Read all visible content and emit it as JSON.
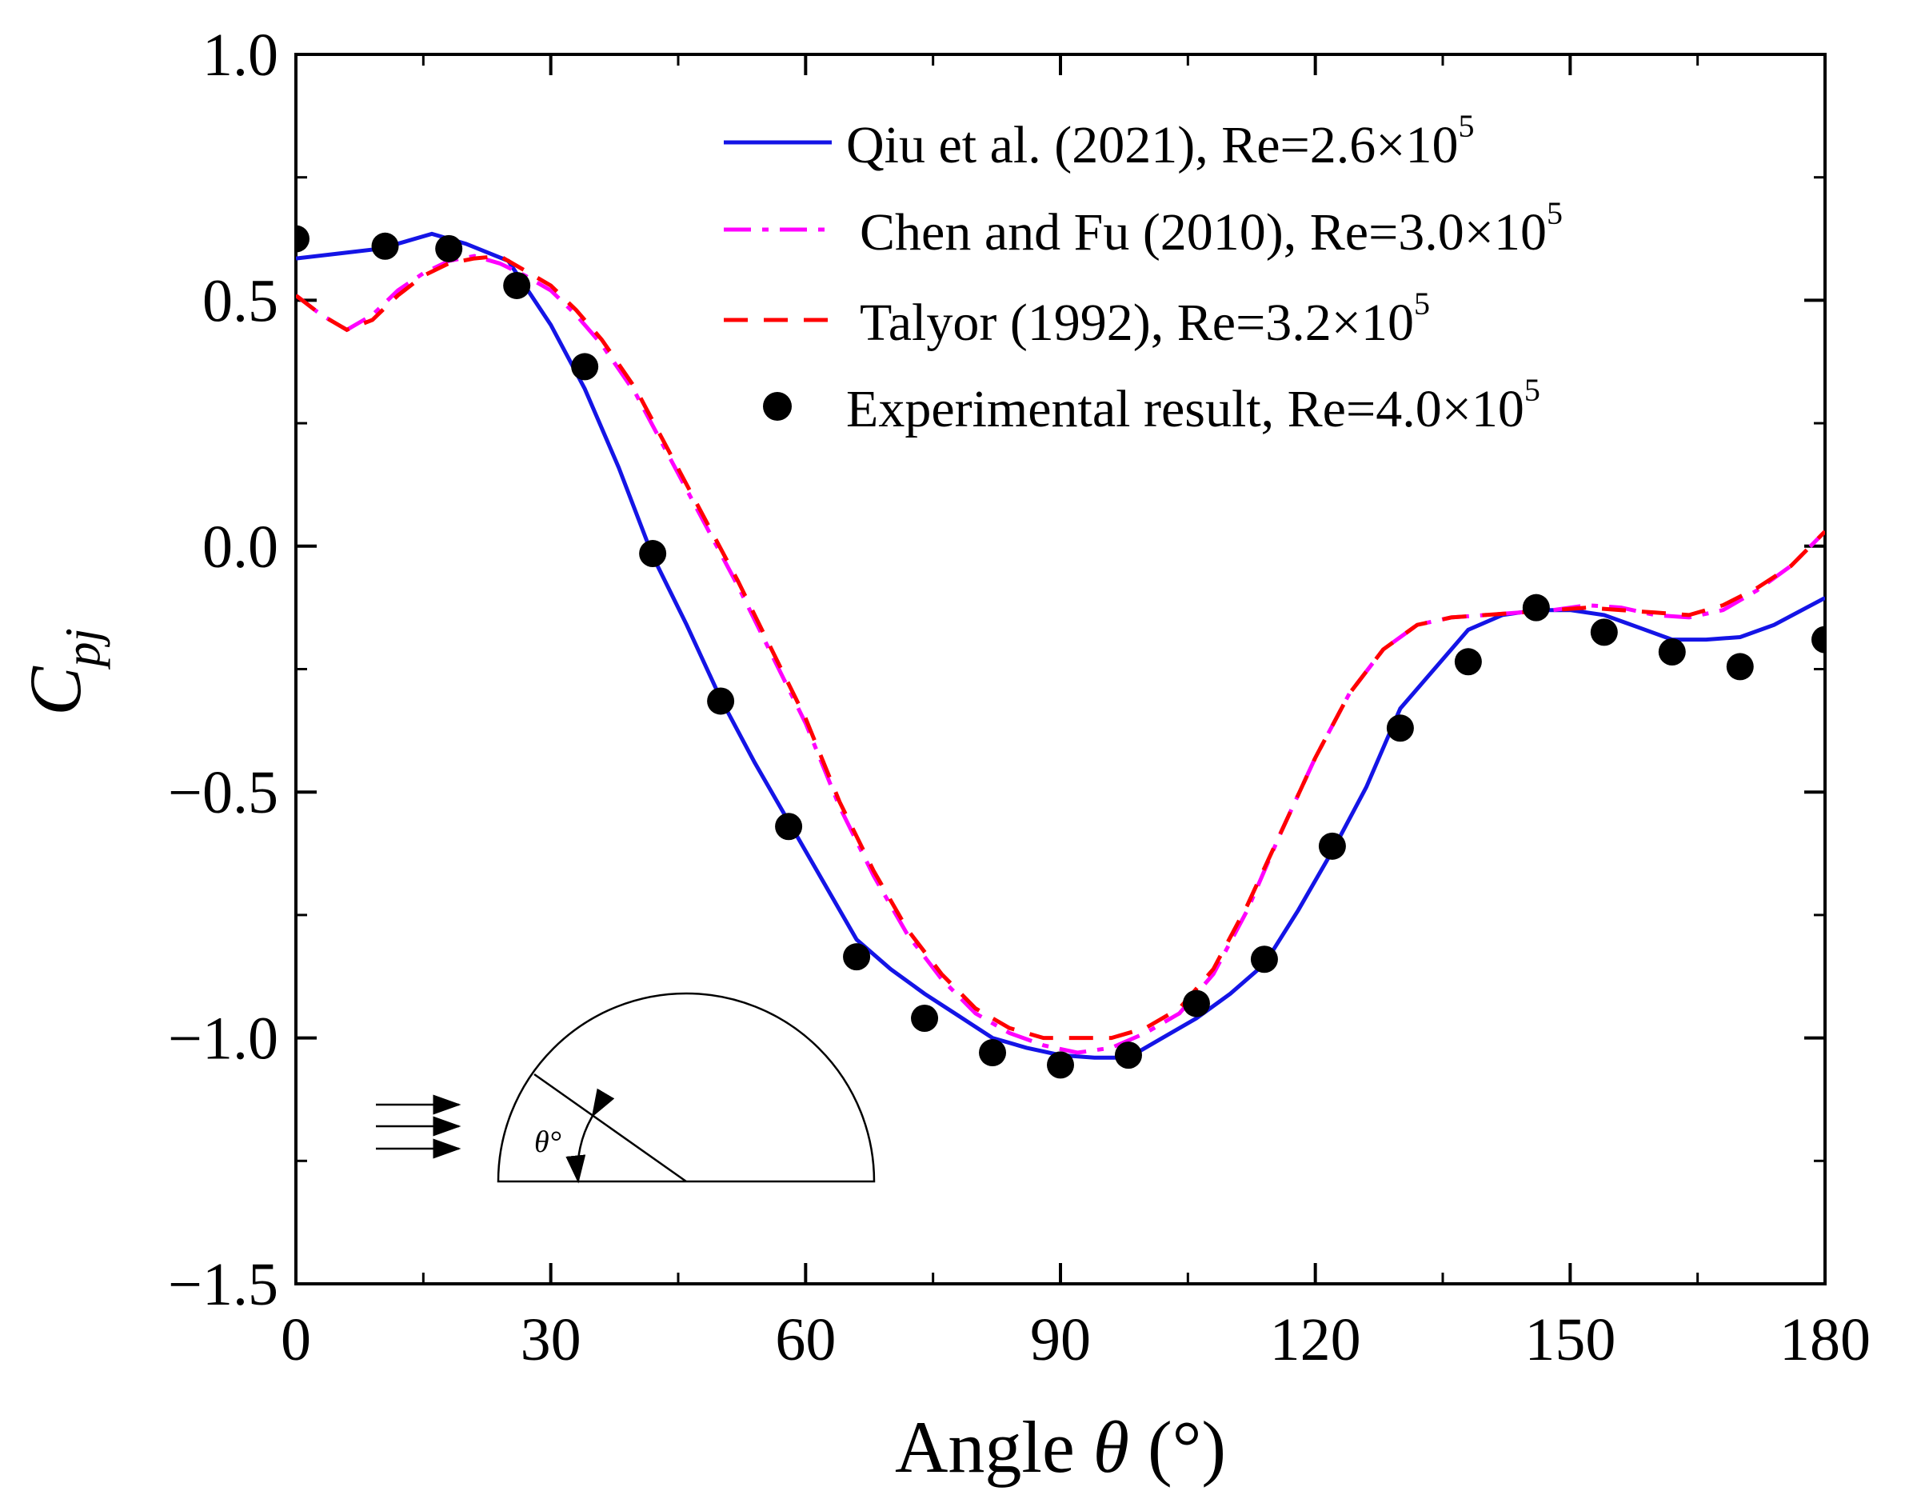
{
  "chart_data": {
    "type": "line",
    "xlabel": "Angle θ (°)",
    "xlabel_parts": {
      "prefix": "Angle ",
      "symbol": "θ",
      "suffix": " (°)"
    },
    "ylabel": "C_pj",
    "ylabel_parts": {
      "main": "C",
      "sub": "pj"
    },
    "xlim": [
      0,
      180
    ],
    "ylim": [
      -1.5,
      1.0
    ],
    "xticks": [
      0,
      30,
      60,
      90,
      120,
      150,
      180
    ],
    "xtick_labels": [
      "0",
      "30",
      "60",
      "90",
      "120",
      "150",
      "180"
    ],
    "yticks": [
      -1.5,
      -1.0,
      -0.5,
      0.0,
      0.5,
      1.0
    ],
    "ytick_labels": [
      "−1.5",
      "−1.0",
      "−0.5",
      "0.0",
      "0.5",
      "1.0"
    ],
    "grid": false,
    "legend_position": "top-right",
    "series": [
      {
        "name": "Qiu et al. (2021), Re=2.6×10^5",
        "label_main": "Qiu et al. (2021), Re=2.6×10",
        "label_exp": "5",
        "style": "solid",
        "color": "#1414e6",
        "x": [
          0,
          5,
          10,
          16,
          20,
          25,
          30,
          34,
          38,
          42,
          46,
          50,
          54,
          58,
          62,
          66,
          70,
          74,
          78,
          82,
          86,
          90,
          94,
          98,
          102,
          106,
          110,
          114,
          118,
          122,
          126,
          130,
          134,
          138,
          142,
          146,
          150,
          154,
          158,
          162,
          166,
          170,
          174,
          180
        ],
        "y": [
          0.585,
          0.595,
          0.605,
          0.635,
          0.615,
          0.58,
          0.45,
          0.32,
          0.16,
          -0.02,
          -0.16,
          -0.31,
          -0.44,
          -0.56,
          -0.68,
          -0.8,
          -0.86,
          -0.91,
          -0.955,
          -1.0,
          -1.02,
          -1.035,
          -1.04,
          -1.04,
          -1.0,
          -0.96,
          -0.91,
          -0.85,
          -0.74,
          -0.62,
          -0.49,
          -0.33,
          -0.25,
          -0.17,
          -0.14,
          -0.13,
          -0.13,
          -0.14,
          -0.165,
          -0.19,
          -0.19,
          -0.185,
          -0.16,
          -0.105
        ]
      },
      {
        "name": "Chen and Fu (2010), Re=3.0×10^5",
        "label_main": "Chen and Fu (2010), Re=3.0×10",
        "label_exp": "5",
        "style": "dashdot",
        "color": "#ff00ff",
        "x": [
          0,
          3,
          6,
          9,
          12,
          15,
          18,
          21,
          24,
          27,
          30,
          33,
          36,
          40,
          44,
          48,
          52,
          56,
          60,
          64,
          68,
          72,
          76,
          80,
          84,
          88,
          92,
          96,
          100,
          104,
          108,
          112,
          116,
          120,
          124,
          128,
          132,
          136,
          140,
          144,
          148,
          152,
          156,
          160,
          164,
          168,
          172,
          176,
          180
        ],
        "y": [
          0.51,
          0.47,
          0.44,
          0.47,
          0.52,
          0.555,
          0.58,
          0.59,
          0.575,
          0.55,
          0.52,
          0.47,
          0.41,
          0.31,
          0.18,
          0.05,
          -0.08,
          -0.22,
          -0.36,
          -0.53,
          -0.67,
          -0.79,
          -0.88,
          -0.95,
          -0.99,
          -1.015,
          -1.03,
          -1.02,
          -0.99,
          -0.95,
          -0.87,
          -0.74,
          -0.58,
          -0.43,
          -0.3,
          -0.21,
          -0.16,
          -0.145,
          -0.14,
          -0.135,
          -0.13,
          -0.12,
          -0.125,
          -0.14,
          -0.145,
          -0.13,
          -0.09,
          -0.04,
          0.03
        ]
      },
      {
        "name": "Talyor (1992), Re=3.2×10^5",
        "label_main": "Talyor (1992), Re=3.2×10",
        "label_exp": "5",
        "style": "dashed",
        "color": "#ff0000",
        "x": [
          0,
          3,
          6,
          9,
          12,
          15,
          18,
          21,
          24,
          27,
          30,
          33,
          36,
          40,
          44,
          48,
          52,
          56,
          60,
          64,
          68,
          72,
          76,
          80,
          84,
          88,
          92,
          96,
          100,
          104,
          108,
          112,
          116,
          120,
          124,
          128,
          132,
          136,
          140,
          144,
          148,
          152,
          156,
          160,
          164,
          168,
          172,
          176,
          180
        ],
        "y": [
          0.51,
          0.47,
          0.44,
          0.46,
          0.51,
          0.55,
          0.575,
          0.585,
          0.59,
          0.56,
          0.53,
          0.48,
          0.42,
          0.32,
          0.19,
          0.06,
          -0.07,
          -0.21,
          -0.35,
          -0.52,
          -0.66,
          -0.78,
          -0.87,
          -0.94,
          -0.98,
          -1.0,
          -1.0,
          -1.0,
          -0.98,
          -0.94,
          -0.86,
          -0.73,
          -0.58,
          -0.43,
          -0.3,
          -0.21,
          -0.16,
          -0.145,
          -0.14,
          -0.135,
          -0.13,
          -0.125,
          -0.13,
          -0.135,
          -0.14,
          -0.12,
          -0.085,
          -0.04,
          0.03
        ]
      }
    ],
    "scatter_series": {
      "name": "Experimental result, Re=4.0×10^5",
      "label_main": "Experimental result, Re=4.0×10",
      "label_exp": "5",
      "marker": "circle",
      "color": "#000000",
      "x": [
        0,
        10.5,
        18,
        26,
        34,
        42,
        50,
        58,
        66,
        74,
        82,
        90,
        98,
        106,
        114,
        122,
        130,
        138,
        146,
        154,
        162,
        170,
        180
      ],
      "y": [
        0.625,
        0.61,
        0.605,
        0.53,
        0.365,
        -0.015,
        -0.315,
        -0.57,
        -0.835,
        -0.96,
        -1.03,
        -1.055,
        -1.035,
        -0.93,
        -0.84,
        -0.61,
        -0.37,
        -0.235,
        -0.125,
        -0.175,
        -0.215,
        -0.245,
        -0.19
      ]
    },
    "inset": {
      "label": "θ°",
      "description_icons": [
        "flow-arrows-icon",
        "semicircle-icon"
      ]
    }
  }
}
